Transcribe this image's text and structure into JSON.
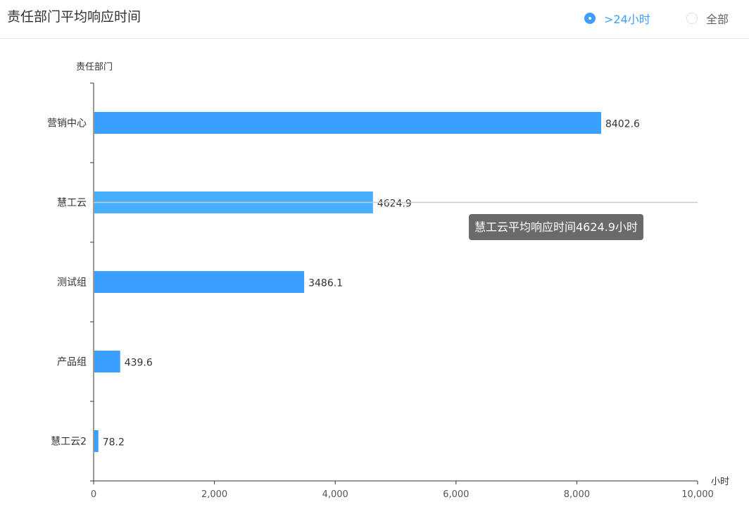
{
  "header": {
    "title": "责任部门平均响应时间",
    "filters": [
      {
        "label": ">24小时",
        "checked": true
      },
      {
        "label": "全部",
        "checked": false
      }
    ]
  },
  "colors": {
    "bar": "#3aa0ff",
    "bar_highlight": "#46b0ff",
    "axis": "#333333",
    "pointer": "#cccccc"
  },
  "chart_data": {
    "type": "bar",
    "orientation": "horizontal",
    "categories": [
      "营销中心",
      "慧工云",
      "测试组",
      "产品组",
      "慧工云2"
    ],
    "values": [
      8402.6,
      4624.9,
      3486.1,
      439.6,
      78.2
    ],
    "value_labels": [
      "8402.6",
      "4624.9",
      "3486.1",
      "439.6",
      "78.2"
    ],
    "xlabel": "小时",
    "ylabel": "责任部门",
    "xlim": [
      0,
      10000
    ],
    "xticks": [
      0,
      2000,
      4000,
      6000,
      8000,
      10000
    ],
    "xtick_labels": [
      "0",
      "2,000",
      "4,000",
      "6,000",
      "8,000",
      "10,000"
    ],
    "grid": false,
    "highlighted_category": "慧工云"
  },
  "tooltip": {
    "text": "慧工云平均响应时间4624.9小时"
  }
}
